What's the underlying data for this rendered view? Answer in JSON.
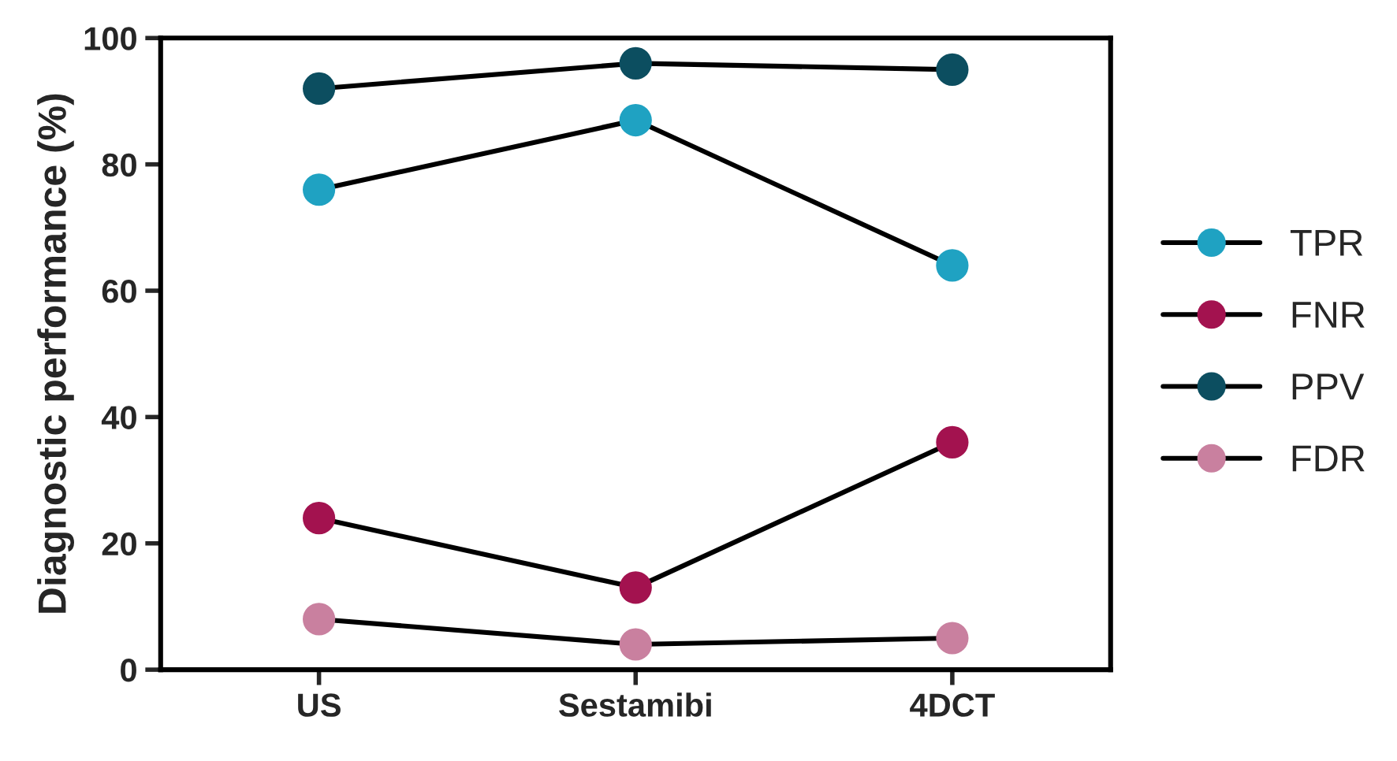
{
  "chart_data": {
    "type": "line",
    "ylabel": "Diagnostic performance (%)",
    "categories": [
      "US",
      "Sestamibi",
      "4DCT"
    ],
    "series": [
      {
        "name": "TPR",
        "color": "#1fa2c2",
        "values": [
          76,
          87,
          64
        ]
      },
      {
        "name": "FNR",
        "color": "#a3124f",
        "values": [
          24,
          13,
          36
        ]
      },
      {
        "name": "PPV",
        "color": "#0c4e60",
        "values": [
          92,
          96,
          95
        ]
      },
      {
        "name": "FDR",
        "color": "#c9809f",
        "values": [
          8,
          4,
          5
        ]
      }
    ],
    "ylim": [
      0,
      100
    ],
    "yticks": [
      0,
      20,
      40,
      60,
      80,
      100
    ],
    "grid": false,
    "legend": "right",
    "marker": "circle",
    "line_style": "solid"
  }
}
